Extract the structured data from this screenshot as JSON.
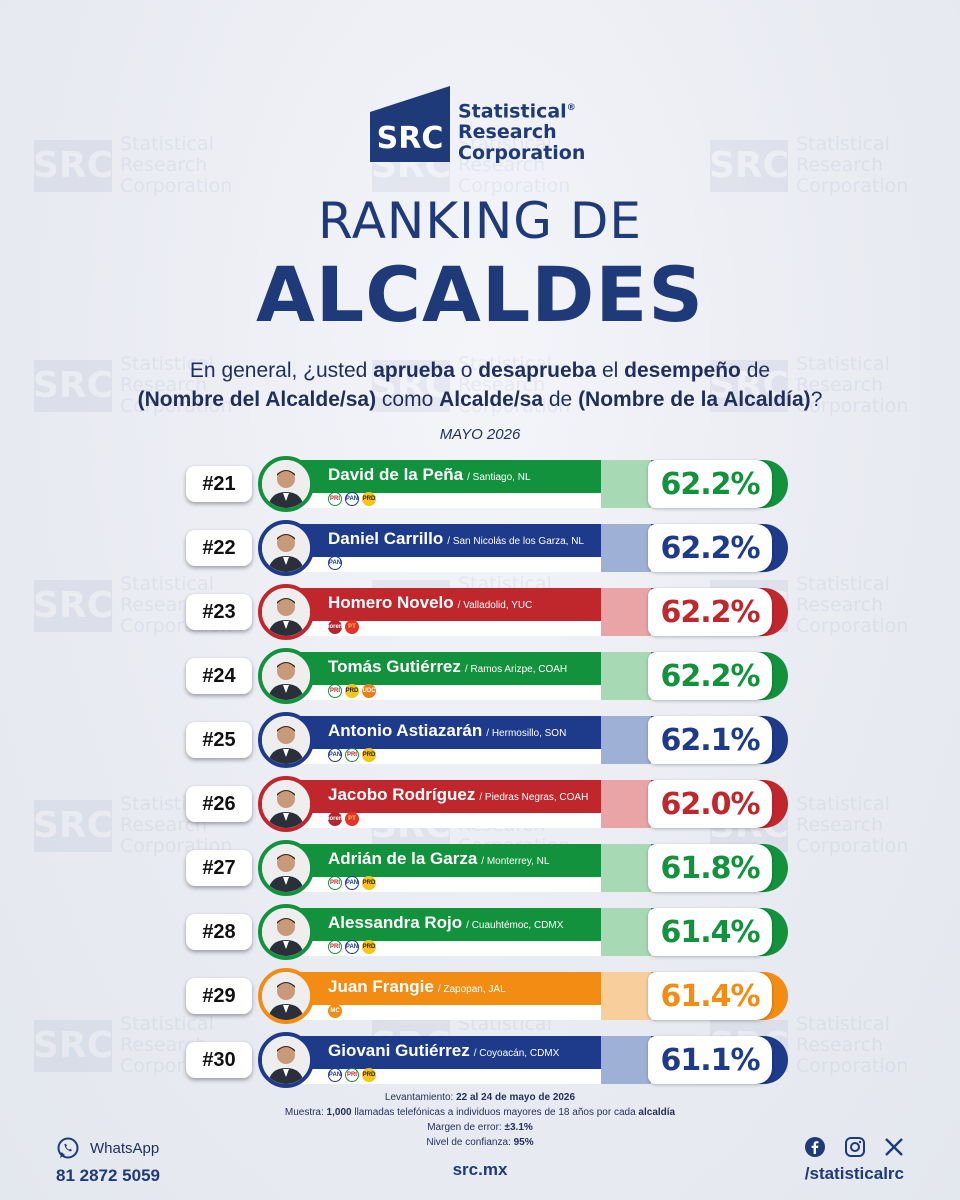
{
  "brand": {
    "abbr": "SRC",
    "line1": "Statistical",
    "line2": "Research",
    "line3": "Corporation",
    "reg": "®"
  },
  "title": {
    "line1": "RANKING DE",
    "line2": "ALCALDES"
  },
  "question": {
    "p1": "En general, ¿usted ",
    "b1": "aprueba",
    "p2": " o ",
    "b2": "desaprueba",
    "p3": " el ",
    "b3": "desempeño",
    "p4": " de",
    "b4": "(Nombre del Alcalde/sa)",
    "p5": " como ",
    "b5": "Alcalde/sa",
    "p6": " de ",
    "b6": "(Nombre de la Alcaldía)",
    "p7": "?"
  },
  "period": "MAYO 2026",
  "colors": {
    "green": "#12923c",
    "blue": "#1e3a8a",
    "red": "#c0272d",
    "orange": "#f28c12"
  },
  "ranking": [
    {
      "rank": "#21",
      "name": "David de la Peña",
      "location": "/ Santiago, NL",
      "pct": "62.2%",
      "value": 62.2,
      "color": "green",
      "parties": [
        "pri",
        "pan",
        "prd"
      ]
    },
    {
      "rank": "#22",
      "name": "Daniel Carrillo",
      "location": "/ San Nicolás de los Garza, NL",
      "pct": "62.2%",
      "value": 62.2,
      "color": "blue",
      "parties": [
        "pan"
      ]
    },
    {
      "rank": "#23",
      "name": "Homero Novelo",
      "location": "/ Valladolid, YUC",
      "pct": "62.2%",
      "value": 62.2,
      "color": "red",
      "parties": [
        "morena",
        "pt"
      ]
    },
    {
      "rank": "#24",
      "name": "Tomás Gutiérrez",
      "location": "/ Ramos Arizpe, COAH",
      "pct": "62.2%",
      "value": 62.2,
      "color": "green",
      "parties": [
        "pri",
        "prd",
        "udc"
      ]
    },
    {
      "rank": "#25",
      "name": "Antonio Astiazarán",
      "location": "/ Hermosillo, SON",
      "pct": "62.1%",
      "value": 62.1,
      "color": "blue",
      "parties": [
        "pan",
        "pri",
        "prd"
      ]
    },
    {
      "rank": "#26",
      "name": "Jacobo Rodríguez",
      "location": "/ Piedras Negras, COAH",
      "pct": "62.0%",
      "value": 62.0,
      "color": "red",
      "parties": [
        "morena",
        "pt"
      ]
    },
    {
      "rank": "#27",
      "name": "Adrián de la Garza",
      "location": "/ Monterrey, NL",
      "pct": "61.8%",
      "value": 61.8,
      "color": "green",
      "parties": [
        "pri",
        "pan",
        "prd"
      ]
    },
    {
      "rank": "#28",
      "name": "Alessandra Rojo",
      "location": "/ Cuauhtémoc, CDMX",
      "pct": "61.4%",
      "value": 61.4,
      "color": "green",
      "parties": [
        "pri",
        "pan",
        "prd"
      ]
    },
    {
      "rank": "#29",
      "name": "Juan Frangie",
      "location": "/ Zapopan, JAL",
      "pct": "61.4%",
      "value": 61.4,
      "color": "orange",
      "parties": [
        "mc"
      ]
    },
    {
      "rank": "#30",
      "name": "Giovani Gutiérrez",
      "location": "/ Coyoacán, CDMX",
      "pct": "61.1%",
      "value": 61.1,
      "color": "blue",
      "parties": [
        "pan",
        "pri",
        "prd"
      ]
    }
  ],
  "party_labels": {
    "pri": "PRI",
    "pan": "PAN",
    "prd": "PRD",
    "morena": "morena",
    "pt": "PT",
    "udc": "UDC",
    "mc": "MC"
  },
  "methodology": {
    "l1a": "Levantamiento: ",
    "l1b": "22 al 24 de mayo de 2026",
    "l2a": "Muestra: ",
    "l2b": "1,000",
    "l2c": " llamadas telefónicas a individuos mayores de 18 años por cada ",
    "l2d": "alcaldía",
    "l3a": "Margen de error: ",
    "l3b": "±3.1%",
    "l4a": "Nivel de confianza: ",
    "l4b": "95%"
  },
  "footer": {
    "whatsapp_label": "WhatsApp",
    "whatsapp_number": "81 2872 5059",
    "website": "src.mx",
    "social_handle": "/statisticalrc"
  }
}
